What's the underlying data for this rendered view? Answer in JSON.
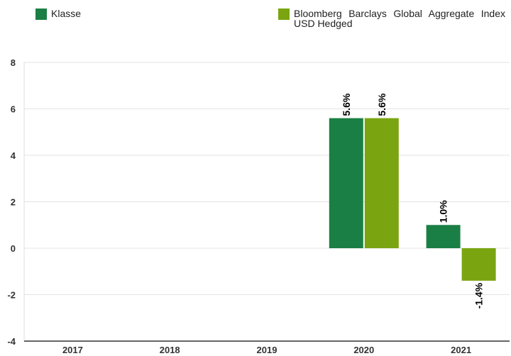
{
  "chart_data": {
    "type": "bar",
    "categories": [
      "2017",
      "2018",
      "2019",
      "2020",
      "2021"
    ],
    "series": [
      {
        "name": "Klasse",
        "values": [
          null,
          null,
          null,
          5.6,
          1.0
        ],
        "labels": [
          null,
          null,
          null,
          "5.6%",
          "1.0%"
        ],
        "color": "#1a7f44"
      },
      {
        "name": "Bloomberg Barclays Global Aggregate Index USD Hedged",
        "values": [
          null,
          null,
          null,
          5.6,
          -1.4
        ],
        "labels": [
          null,
          null,
          null,
          "5.6%",
          "-1.4%"
        ],
        "color": "#7aa511"
      }
    ],
    "yticks": [
      "8",
      "6",
      "4",
      "2",
      "0",
      "-2",
      "-4"
    ],
    "ylim": [
      -4,
      8
    ],
    "grid": true,
    "legend": "top"
  },
  "colors": {
    "gridline": "#e3e3e3",
    "axis": "#333333"
  }
}
